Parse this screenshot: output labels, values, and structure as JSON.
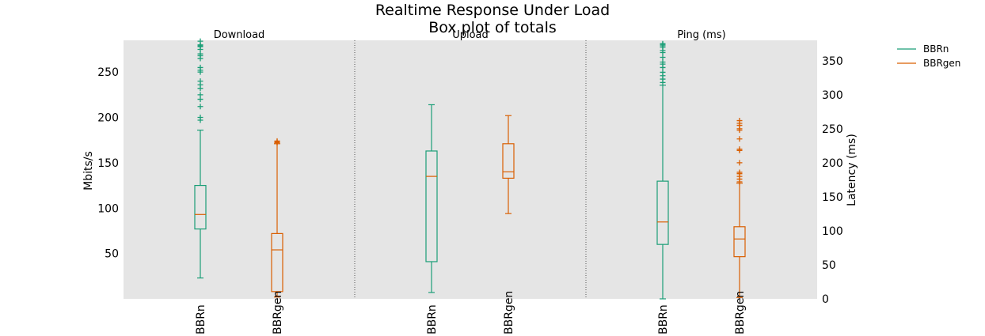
{
  "chart_data": {
    "type": "box",
    "title": "Realtime Response Under Load",
    "subtitle": "Box plot of totals",
    "legend": {
      "placement": "top-right, outside plot",
      "entries": [
        {
          "name": "BBRn",
          "color": "#1b9e77"
        },
        {
          "name": "BBRgen",
          "color": "#d95f02"
        }
      ]
    },
    "panels": [
      {
        "title": "Download",
        "axis": "left",
        "categories": [
          "BBRn",
          "BBRgen"
        ],
        "boxes": [
          {
            "series": "BBRn",
            "whisker_low": 23,
            "q1": 77,
            "median": 93,
            "q3": 125,
            "whisker_high": 186,
            "outliers": [
              197,
              200,
              212,
              220,
              225,
              232,
              236,
              240,
              250,
              252,
              255,
              265,
              268,
              270,
              275,
              278,
              279,
              280,
              284
            ]
          },
          {
            "series": "BBRgen",
            "whisker_low": 2,
            "q1": 8,
            "median": 54,
            "q3": 72,
            "whisker_high": 171,
            "outliers": [
              172,
              173,
              174
            ]
          }
        ]
      },
      {
        "title": "Upload",
        "axis": "left",
        "categories": [
          "BBRn",
          "BBRgen"
        ],
        "boxes": [
          {
            "series": "BBRn",
            "whisker_low": 7,
            "q1": 41,
            "median": 135,
            "q3": 163,
            "whisker_high": 214,
            "outliers": []
          },
          {
            "series": "BBRgen",
            "whisker_low": 94,
            "q1": 133,
            "median": 140,
            "q3": 171,
            "whisker_high": 202,
            "outliers": []
          }
        ]
      },
      {
        "title": "Ping (ms)",
        "axis": "right",
        "categories": [
          "BBRn",
          "BBRgen"
        ],
        "boxes": [
          {
            "series": "BBRn",
            "whisker_low": 0,
            "q1": 80,
            "median": 113,
            "q3": 173,
            "whisker_high": 314,
            "outliers": [
              318,
              323,
              328,
              333,
              340,
              345,
              348,
              355,
              362,
              365,
              370,
              372,
              374,
              375
            ]
          },
          {
            "series": "BBRgen",
            "whisker_low": 2,
            "q1": 62,
            "median": 88,
            "q3": 106,
            "whisker_high": 170,
            "outliers": [
              172,
              176,
              180,
              184,
              186,
              200,
              218,
              220,
              235,
              248,
              250,
              255,
              258,
              262
            ]
          }
        ]
      }
    ],
    "y_left": {
      "label": "Mbits/s",
      "ylim": [
        0,
        285
      ],
      "ticks": [
        50,
        100,
        150,
        200,
        250
      ]
    },
    "y_right": {
      "label": "Latency (ms)",
      "ylim": [
        0,
        380
      ],
      "ticks": [
        0,
        50,
        100,
        150,
        200,
        250,
        300,
        350
      ]
    },
    "background": "#e5e5e5",
    "panel_separator": "dotted",
    "grid": false
  }
}
